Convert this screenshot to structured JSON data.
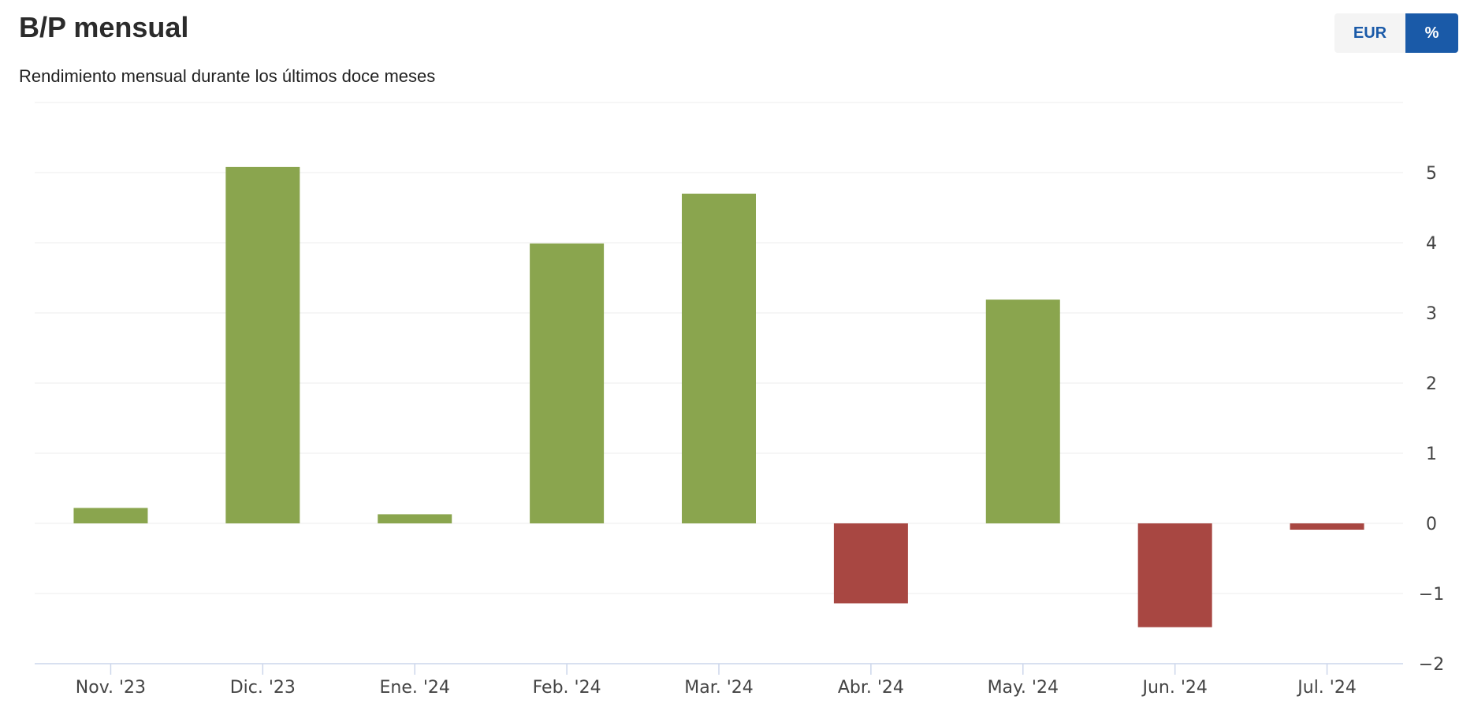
{
  "header": {
    "title": "B/P mensual",
    "subtitle": "Rendimiento mensual durante los últimos doce meses"
  },
  "toggle": {
    "options": [
      "EUR",
      "%"
    ],
    "selected": "%"
  },
  "colors": {
    "positive": "#8aa54e",
    "negative": "#a84742",
    "grid": "#eeeeee",
    "axis": "#ccd6eb",
    "tick_text": "#444444",
    "accent": "#1a5aa8"
  },
  "chart_data": {
    "type": "bar",
    "categories": [
      "Nov. '23",
      "Dic. '23",
      "Ene. '24",
      "Feb. '24",
      "Mar. '24",
      "Abr. '24",
      "May. '24",
      "Jun. '24",
      "Jul. '24"
    ],
    "values": [
      0.22,
      5.08,
      0.13,
      3.99,
      4.7,
      -1.14,
      3.19,
      -1.48,
      -0.09
    ],
    "yticks": [
      5,
      4,
      3,
      2,
      1,
      0,
      -1,
      -2
    ],
    "ytick_labels": [
      "5",
      "4",
      "3",
      "2",
      "1",
      "0",
      "−1",
      "−2"
    ],
    "ylim": [
      -2,
      6
    ],
    "yaxis_position": "right",
    "grid": true,
    "legend": false
  }
}
